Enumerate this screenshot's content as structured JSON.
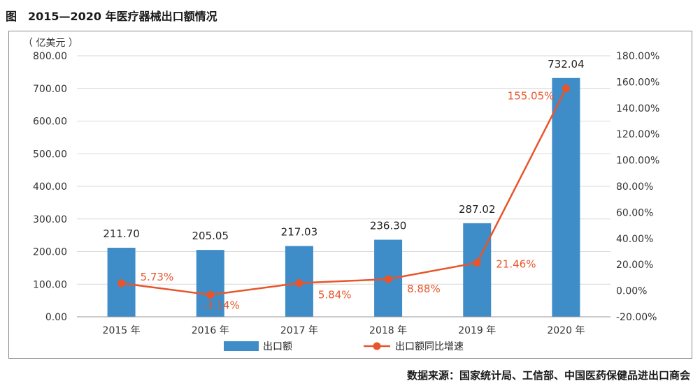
{
  "figure": {
    "title": "图　2015—2020 年医疗器械出口额情况",
    "source": "数据来源：国家统计局、工信部、中国医药保健品进出口商会"
  },
  "chart_data": {
    "type": "bar",
    "categories": [
      "2015 年",
      "2016 年",
      "2017 年",
      "2018 年",
      "2019 年",
      "2020 年"
    ],
    "series": [
      {
        "name": "出口额",
        "type": "bar",
        "axis": "left",
        "values": [
          211.7,
          205.05,
          217.03,
          236.3,
          287.02,
          732.04
        ],
        "labels": [
          "211.70",
          "205.05",
          "217.03",
          "236.30",
          "287.02",
          "732.04"
        ],
        "color": "#3f8dc8"
      },
      {
        "name": "出口额同比增速",
        "type": "line",
        "axis": "right",
        "values": [
          5.73,
          -3.14,
          5.84,
          8.88,
          21.46,
          155.05
        ],
        "labels": [
          "5.73%",
          "-3.14%",
          "5.84%",
          "8.88%",
          "21.46%",
          "155.05%"
        ],
        "color": "#e8552a"
      }
    ],
    "y_left": {
      "unit": "（ 亿美元 ）",
      "ylim": [
        0,
        800
      ],
      "ticks": [
        0,
        100,
        200,
        300,
        400,
        500,
        600,
        700,
        800
      ],
      "tick_labels": [
        "0.00",
        "100.00",
        "200.00",
        "300.00",
        "400.00",
        "500.00",
        "600.00",
        "700.00",
        "800.00"
      ]
    },
    "y_right": {
      "ylim": [
        -20,
        180
      ],
      "ticks": [
        -20,
        0,
        20,
        40,
        60,
        80,
        100,
        120,
        140,
        160,
        180
      ],
      "tick_labels": [
        "-20.00%",
        "0.00%",
        "20.00%",
        "40.00%",
        "60.00%",
        "80.00%",
        "100.00%",
        "120.00%",
        "140.00%",
        "160.00%",
        "180.00%"
      ]
    },
    "grid": true,
    "legend_position": "bottom"
  }
}
